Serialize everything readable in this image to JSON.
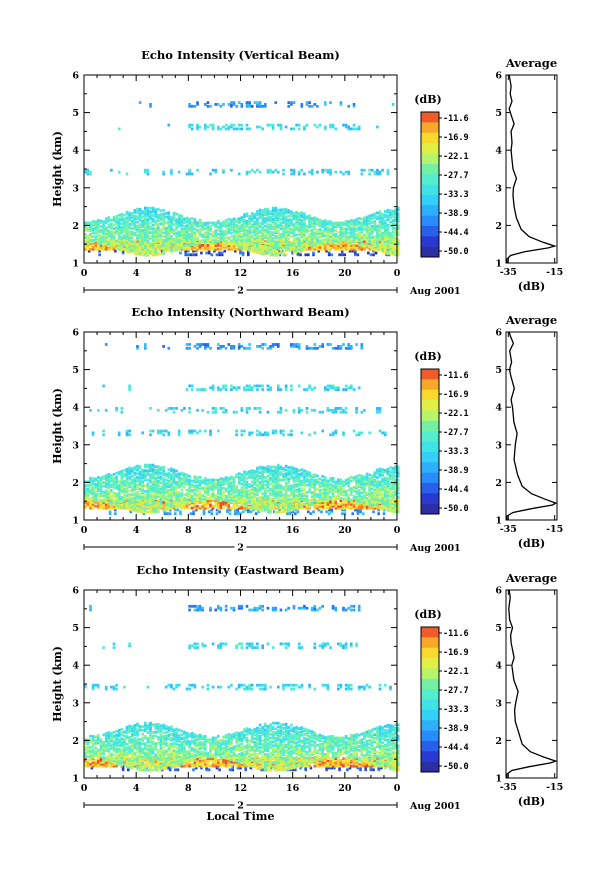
{
  "chart_data": [
    {
      "type": "heatmap",
      "title": "Echo Intensity (Vertical Beam)",
      "ylabel": "Height (km)",
      "xlabel": "",
      "xlim": [
        0,
        24
      ],
      "ylim": [
        1,
        6
      ],
      "xticks": [
        "0",
        "4",
        "8",
        "12",
        "16",
        "20",
        "0"
      ],
      "yticks": [
        "1",
        "2",
        "3",
        "4",
        "5",
        "6"
      ],
      "date_day": "2",
      "date_label": "Aug 2001",
      "colorbar_unit": "(dB)",
      "colorbar_ticks": [
        "-11.6",
        "-16.9",
        "-22.1",
        "-27.7",
        "-33.3",
        "-38.9",
        "-44.4",
        "-50.0"
      ],
      "layers": [
        {
          "height": 1.25,
          "intensity": -44.4,
          "description_level": "weak"
        },
        {
          "height": 1.45,
          "intensity": -16.9,
          "description_level": "strong"
        },
        {
          "height": 1.8,
          "intensity": -27.7,
          "description_level": "moderate"
        },
        {
          "height": 3.4,
          "intensity": -33.3,
          "description_level": "weak"
        },
        {
          "height": 4.6,
          "intensity": -33.3,
          "description_level": "weak"
        },
        {
          "height": 5.2,
          "intensity": -38.9,
          "description_level": "weak"
        }
      ],
      "average_profile": {
        "title": "Average",
        "xlabel": "(dB)",
        "xticks": [
          "-35",
          "-15"
        ],
        "xlim": [
          -36,
          -14
        ],
        "yticks": [
          "1",
          "2",
          "3",
          "4",
          "5",
          "6"
        ],
        "points": [
          [
            -35.5,
            1.0
          ],
          [
            -35.6,
            1.1
          ],
          [
            -34.0,
            1.2
          ],
          [
            -28.0,
            1.3
          ],
          [
            -18.0,
            1.4
          ],
          [
            -15.0,
            1.45
          ],
          [
            -20.0,
            1.55
          ],
          [
            -26.0,
            1.7
          ],
          [
            -29.5,
            1.9
          ],
          [
            -31.5,
            2.2
          ],
          [
            -32.5,
            2.5
          ],
          [
            -33.0,
            2.8
          ],
          [
            -32.8,
            3.0
          ],
          [
            -31.5,
            3.25
          ],
          [
            -33.0,
            3.5
          ],
          [
            -33.5,
            3.8
          ],
          [
            -33.8,
            4.0
          ],
          [
            -33.4,
            4.2
          ],
          [
            -33.8,
            4.5
          ],
          [
            -32.5,
            4.7
          ],
          [
            -33.6,
            4.9
          ],
          [
            -34.6,
            5.1
          ],
          [
            -33.4,
            5.3
          ],
          [
            -34.2,
            5.5
          ],
          [
            -33.8,
            5.7
          ],
          [
            -34.6,
            6.0
          ]
        ]
      }
    },
    {
      "type": "heatmap",
      "title": "Echo Intensity (Northward Beam)",
      "ylabel": "Height (km)",
      "xlabel": "",
      "xlim": [
        0,
        24
      ],
      "ylim": [
        1,
        6
      ],
      "xticks": [
        "0",
        "4",
        "8",
        "12",
        "16",
        "20",
        "0"
      ],
      "yticks": [
        "1",
        "2",
        "3",
        "4",
        "5",
        "6"
      ],
      "date_day": "2",
      "date_label": "Aug 2001",
      "colorbar_unit": "(dB)",
      "colorbar_ticks": [
        "-11.6",
        "-16.9",
        "-22.1",
        "-27.7",
        "-33.3",
        "-38.9",
        "-44.4",
        "-50.0"
      ],
      "layers": [
        {
          "height": 1.2,
          "intensity": -38.9,
          "description_level": "weak"
        },
        {
          "height": 1.4,
          "intensity": -16.9,
          "description_level": "strong"
        },
        {
          "height": 1.8,
          "intensity": -27.7,
          "description_level": "moderate"
        },
        {
          "height": 3.3,
          "intensity": -33.3,
          "description_level": "weak"
        },
        {
          "height": 3.9,
          "intensity": -33.3,
          "description_level": "weak"
        },
        {
          "height": 4.5,
          "intensity": -33.3,
          "description_level": "weak"
        },
        {
          "height": 5.6,
          "intensity": -38.9,
          "description_level": "weak"
        }
      ],
      "average_profile": {
        "title": "Average",
        "xlabel": "(dB)",
        "xticks": [
          "-35",
          "-15"
        ],
        "xlim": [
          -36,
          -14
        ],
        "yticks": [
          "1",
          "2",
          "3",
          "4",
          "5",
          "6"
        ],
        "points": [
          [
            -35.5,
            1.0
          ],
          [
            -35.6,
            1.1
          ],
          [
            -33.0,
            1.2
          ],
          [
            -25.0,
            1.3
          ],
          [
            -16.0,
            1.4
          ],
          [
            -14.5,
            1.45
          ],
          [
            -19.0,
            1.55
          ],
          [
            -25.0,
            1.7
          ],
          [
            -29.0,
            1.9
          ],
          [
            -31.0,
            2.2
          ],
          [
            -32.5,
            2.6
          ],
          [
            -32.0,
            3.0
          ],
          [
            -31.2,
            3.3
          ],
          [
            -32.6,
            3.6
          ],
          [
            -33.2,
            4.0
          ],
          [
            -33.8,
            4.2
          ],
          [
            -32.4,
            4.5
          ],
          [
            -33.8,
            4.8
          ],
          [
            -34.5,
            5.0
          ],
          [
            -33.6,
            5.2
          ],
          [
            -34.4,
            5.5
          ],
          [
            -32.8,
            5.7
          ],
          [
            -34.2,
            5.9
          ],
          [
            -34.6,
            6.0
          ]
        ]
      }
    },
    {
      "type": "heatmap",
      "title": "Echo Intensity (Eastward Beam)",
      "ylabel": "Height (km)",
      "xlabel": "Local Time",
      "xlim": [
        0,
        24
      ],
      "ylim": [
        1,
        6
      ],
      "xticks": [
        "0",
        "4",
        "8",
        "12",
        "16",
        "20",
        "0"
      ],
      "yticks": [
        "1",
        "2",
        "3",
        "4",
        "5",
        "6"
      ],
      "date_day": "2",
      "date_label": "Aug 2001",
      "colorbar_unit": "(dB)",
      "colorbar_ticks": [
        "-11.6",
        "-16.9",
        "-22.1",
        "-27.7",
        "-33.3",
        "-38.9",
        "-44.4",
        "-50.0"
      ],
      "layers": [
        {
          "height": 1.25,
          "intensity": -44.4,
          "description_level": "weak"
        },
        {
          "height": 1.4,
          "intensity": -16.9,
          "description_level": "strong"
        },
        {
          "height": 1.8,
          "intensity": -27.7,
          "description_level": "moderate"
        },
        {
          "height": 3.4,
          "intensity": -33.3,
          "description_level": "weak"
        },
        {
          "height": 4.5,
          "intensity": -33.3,
          "description_level": "weak"
        },
        {
          "height": 5.5,
          "intensity": -38.9,
          "description_level": "weak"
        }
      ],
      "average_profile": {
        "title": "Average",
        "xlabel": "(dB)",
        "xticks": [
          "-35",
          "-15"
        ],
        "xlim": [
          -36,
          -14
        ],
        "yticks": [
          "1",
          "2",
          "3",
          "4",
          "5",
          "6"
        ],
        "points": [
          [
            -35.5,
            1.0
          ],
          [
            -35.6,
            1.1
          ],
          [
            -33.5,
            1.2
          ],
          [
            -26.0,
            1.3
          ],
          [
            -17.0,
            1.4
          ],
          [
            -14.5,
            1.45
          ],
          [
            -19.5,
            1.55
          ],
          [
            -25.5,
            1.7
          ],
          [
            -29.0,
            1.9
          ],
          [
            -30.5,
            2.2
          ],
          [
            -32.0,
            2.5
          ],
          [
            -32.3,
            2.8
          ],
          [
            -31.8,
            3.0
          ],
          [
            -30.8,
            3.3
          ],
          [
            -32.6,
            3.6
          ],
          [
            -33.5,
            4.0
          ],
          [
            -32.5,
            4.2
          ],
          [
            -33.8,
            4.6
          ],
          [
            -34.0,
            4.8
          ],
          [
            -33.2,
            5.0
          ],
          [
            -34.4,
            5.2
          ],
          [
            -34.8,
            5.5
          ],
          [
            -34.2,
            5.8
          ],
          [
            -34.6,
            6.0
          ]
        ]
      }
    }
  ]
}
